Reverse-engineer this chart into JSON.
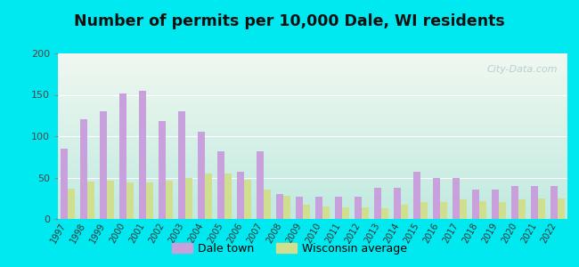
{
  "title": "Number of permits per 10,000 Dale, WI residents",
  "years": [
    1997,
    1998,
    1999,
    2000,
    2001,
    2002,
    2003,
    2004,
    2005,
    2006,
    2007,
    2008,
    2009,
    2010,
    2011,
    2012,
    2013,
    2014,
    2015,
    2016,
    2017,
    2018,
    2019,
    2020,
    2021,
    2022
  ],
  "dale_values": [
    85,
    120,
    130,
    152,
    155,
    118,
    130,
    105,
    82,
    57,
    82,
    30,
    27,
    27,
    27,
    27,
    38,
    38,
    57,
    50,
    50,
    35,
    35,
    40,
    40,
    40
  ],
  "wi_values": [
    37,
    45,
    46,
    44,
    44,
    46,
    50,
    55,
    55,
    47,
    36,
    28,
    17,
    15,
    14,
    14,
    13,
    17,
    20,
    20,
    24,
    22,
    20,
    24,
    25,
    25
  ],
  "dale_color": "#c8a0dc",
  "wi_color": "#d0de90",
  "background_outer": "#00e8f0",
  "background_inner_topleft": "#d8f0d8",
  "background_inner_topright": "#f0f8f0",
  "background_inner_bottom": "#c0eae8",
  "ylim": [
    0,
    200
  ],
  "yticks": [
    0,
    50,
    100,
    150,
    200
  ],
  "legend_dale": "Dale town",
  "legend_wi": "Wisconsin average",
  "bar_width": 0.35,
  "title_fontsize": 12.5,
  "watermark": "City-Data.com"
}
